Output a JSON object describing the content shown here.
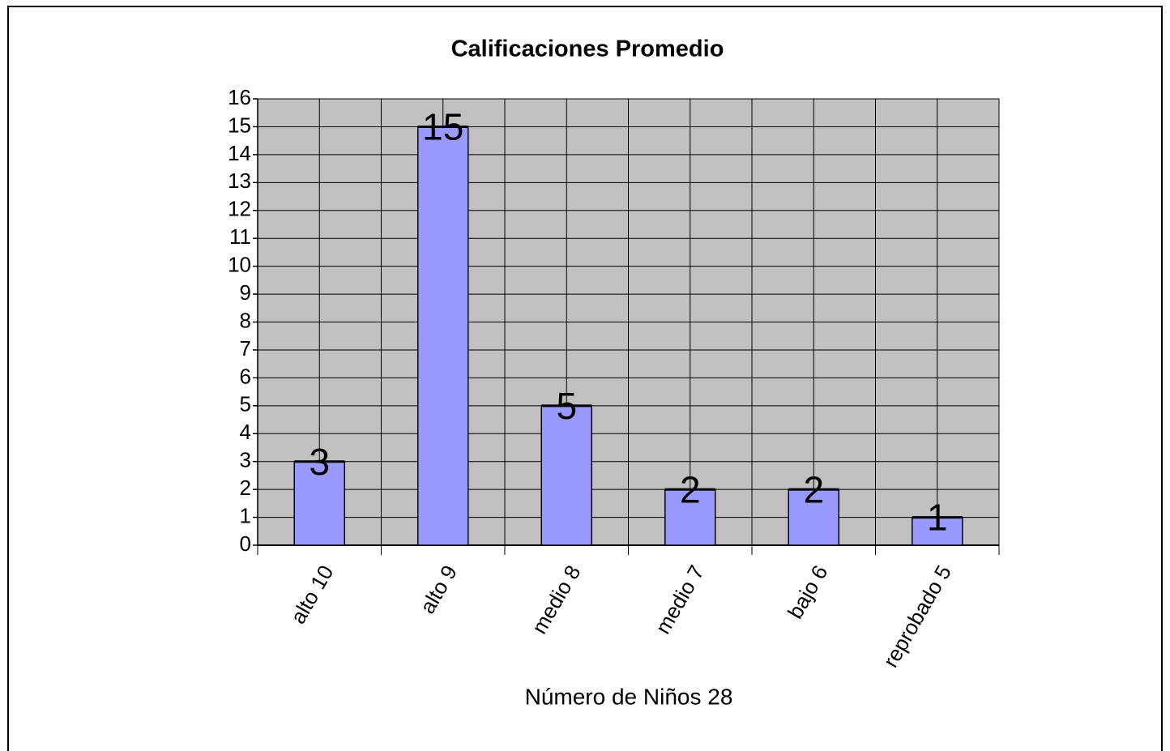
{
  "chart_data": {
    "type": "bar",
    "title": "Calificaciones Promedio",
    "x_label": "Número de Niños 28",
    "categories": [
      "alto 10",
      "alto  9",
      "medio 8",
      "medio 7",
      "bajo 6",
      "reprobado 5"
    ],
    "values": [
      3,
      15,
      5,
      2,
      2,
      1
    ],
    "color": "#9999ff",
    "ylim": [
      0,
      16
    ],
    "yticks": [
      0,
      1,
      2,
      3,
      4,
      5,
      6,
      7,
      8,
      9,
      10,
      11,
      12,
      13,
      14,
      15,
      16
    ],
    "grid": true
  }
}
